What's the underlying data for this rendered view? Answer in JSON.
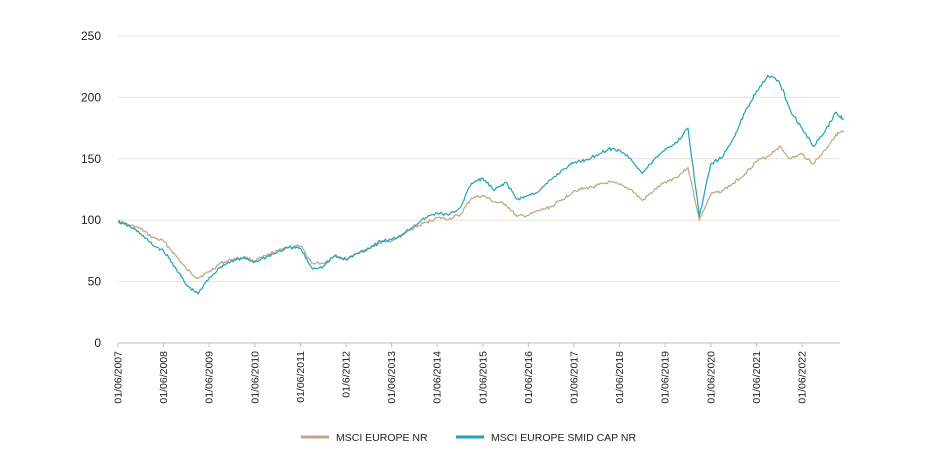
{
  "chart_data": {
    "type": "line",
    "title": "",
    "xlabel": "",
    "ylabel": "",
    "ylim": [
      0,
      250
    ],
    "yticks": [
      0,
      50,
      100,
      150,
      200,
      250
    ],
    "grid": "horizontal",
    "legend_position": "bottom",
    "x_tick_labels": [
      "01/06/2007",
      "01/06/2008",
      "01/06/2009",
      "01/06/2010",
      "01/06/2011",
      "01/6/2012",
      "01/06/2013",
      "01/06/2014",
      "01/06/2015",
      "01/06/2016",
      "01/06/2017",
      "01/06/2018",
      "01/06/2019",
      "01/06/2020",
      "01/06/2021",
      "01/06/2022"
    ],
    "x": [
      "2007-06",
      "2007-09",
      "2007-12",
      "2008-03",
      "2008-06",
      "2008-09",
      "2008-12",
      "2009-03",
      "2009-06",
      "2009-09",
      "2009-12",
      "2010-03",
      "2010-06",
      "2010-09",
      "2010-12",
      "2011-03",
      "2011-06",
      "2011-09",
      "2011-12",
      "2012-03",
      "2012-06",
      "2012-09",
      "2012-12",
      "2013-03",
      "2013-06",
      "2013-09",
      "2013-12",
      "2014-03",
      "2014-06",
      "2014-09",
      "2014-12",
      "2015-03",
      "2015-06",
      "2015-09",
      "2015-12",
      "2016-03",
      "2016-06",
      "2016-09",
      "2016-12",
      "2017-03",
      "2017-06",
      "2017-09",
      "2017-12",
      "2018-03",
      "2018-06",
      "2018-09",
      "2018-12",
      "2019-03",
      "2019-06",
      "2019-09",
      "2019-12",
      "2020-03",
      "2020-06",
      "2020-09",
      "2020-12",
      "2021-03",
      "2021-06",
      "2021-09",
      "2021-12",
      "2022-03",
      "2022-06",
      "2022-09",
      "2022-12",
      "2023-03",
      "2023-05"
    ],
    "series": [
      {
        "name": "MSCI EUROPE NR",
        "color": "#c0a584",
        "values": [
          99,
          96,
          93,
          86,
          83,
          72,
          60,
          53,
          58,
          65,
          68,
          70,
          67,
          71,
          75,
          78,
          79,
          65,
          65,
          71,
          68,
          73,
          77,
          82,
          83,
          88,
          94,
          98,
          102,
          101,
          104,
          118,
          120,
          115,
          113,
          103,
          104,
          108,
          111,
          117,
          124,
          126,
          128,
          131,
          129,
          125,
          116,
          124,
          131,
          135,
          143,
          100,
          121,
          124,
          130,
          138,
          148,
          152,
          160,
          150,
          154,
          146,
          157,
          170,
          172
        ]
      },
      {
        "name": "MSCI EUROPE SMID CAP NR",
        "color": "#1ea3b8",
        "values": [
          99,
          95,
          89,
          80,
          75,
          62,
          47,
          40,
          53,
          62,
          67,
          69,
          66,
          70,
          74,
          78,
          77,
          61,
          62,
          71,
          68,
          73,
          77,
          83,
          84,
          89,
          96,
          102,
          106,
          104,
          110,
          130,
          134,
          124,
          131,
          117,
          120,
          124,
          133,
          141,
          147,
          149,
          153,
          158,
          157,
          150,
          138,
          149,
          158,
          163,
          175,
          103,
          146,
          151,
          167,
          188,
          205,
          218,
          213,
          189,
          175,
          160,
          172,
          188,
          182
        ]
      }
    ]
  }
}
